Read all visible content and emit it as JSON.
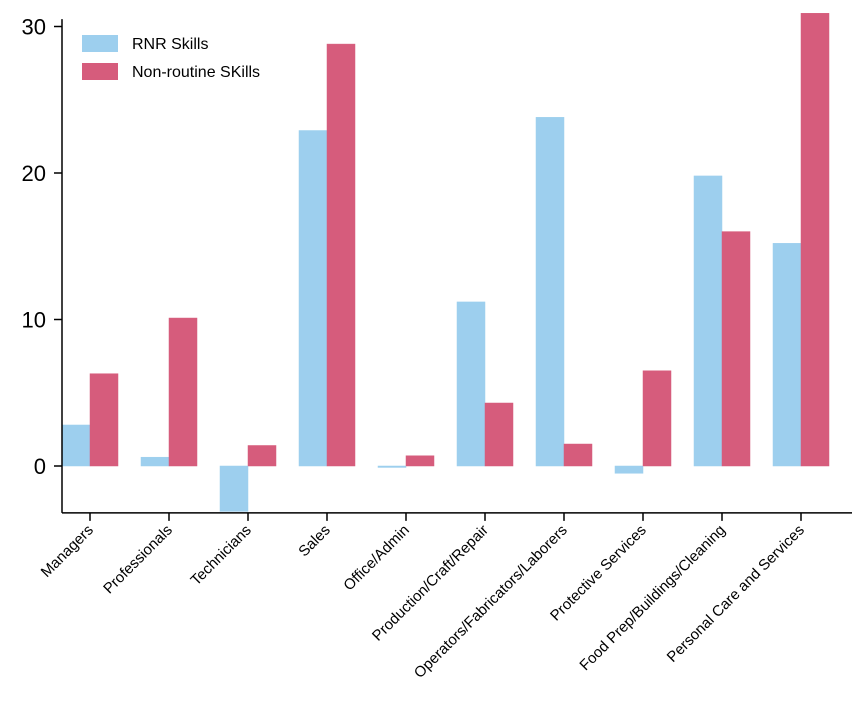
{
  "chart_data": {
    "type": "bar",
    "title": "",
    "xlabel": "",
    "ylabel": "",
    "ylim": [
      -3.2,
      30.5
    ],
    "yticks": [
      0,
      10,
      20,
      30
    ],
    "grid": false,
    "legend_position": "top-left",
    "categories": [
      "Managers",
      "Professionals",
      "Technicians",
      "Sales",
      "Office/Admin",
      "Production/Craft/Repair",
      "Operators/Fabricators/Laborers",
      "Protective Services",
      "Food Prep/Buildings/Cleaning",
      "Personal Care and Services"
    ],
    "series": [
      {
        "name": "RNR Skills",
        "color": "#9dcfee",
        "values": [
          2.8,
          0.6,
          -3.1,
          22.9,
          -0.1,
          11.2,
          23.8,
          -0.5,
          19.8,
          15.2
        ]
      },
      {
        "name": "Non-routine SKills",
        "color": "#d65c7c",
        "values": [
          6.3,
          10.1,
          1.4,
          28.8,
          0.7,
          4.3,
          1.5,
          6.5,
          16.0,
          30.9
        ]
      }
    ]
  }
}
